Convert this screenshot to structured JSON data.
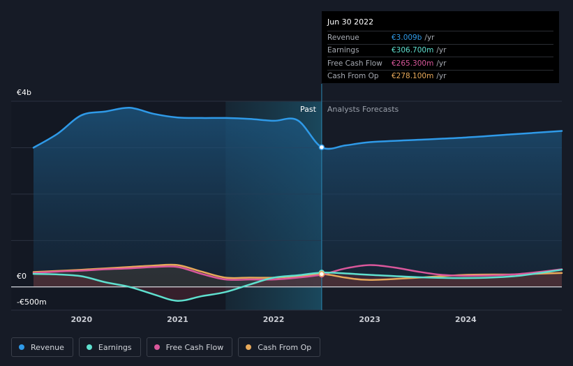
{
  "tooltip": {
    "date": "Jun 30 2022",
    "rows": [
      {
        "label": "Revenue",
        "value": "€3.009b",
        "unit": "/yr",
        "color": "#2f9ae8"
      },
      {
        "label": "Earnings",
        "value": "€306.700m",
        "unit": "/yr",
        "color": "#5fe0cf"
      },
      {
        "label": "Free Cash Flow",
        "value": "€265.300m",
        "unit": "/yr",
        "color": "#d9579b"
      },
      {
        "label": "Cash From Op",
        "value": "€278.100m",
        "unit": "/yr",
        "color": "#e8a95a"
      }
    ]
  },
  "legend": [
    {
      "label": "Revenue",
      "color": "#2f9ae8"
    },
    {
      "label": "Earnings",
      "color": "#5fe0cf"
    },
    {
      "label": "Free Cash Flow",
      "color": "#d9579b"
    },
    {
      "label": "Cash From Op",
      "color": "#e8a95a"
    }
  ],
  "chart_data": {
    "type": "line",
    "y_tick_labels": [
      "€4b",
      "€0",
      "-€500m"
    ],
    "ylim": [
      -500,
      4000
    ],
    "x_ticks": [
      2020,
      2021,
      2022,
      2023,
      2024
    ],
    "xlim": [
      2019.5,
      2025.0
    ],
    "past_label": "Past",
    "forecast_label": "Analysts Forecasts",
    "past_end": 2022.5,
    "forecast_shade_start": 2021.5,
    "grid": true,
    "legend_position": "bottom",
    "series": [
      {
        "name": "Revenue",
        "color": "#2f9ae8",
        "x": [
          2019.5,
          2019.75,
          2020.0,
          2020.25,
          2020.5,
          2020.75,
          2021.0,
          2021.25,
          2021.5,
          2021.75,
          2022.0,
          2022.25,
          2022.5,
          2022.75,
          2023.0,
          2023.5,
          2024.0,
          2024.5,
          2025.0
        ],
        "y": [
          3000,
          3300,
          3700,
          3780,
          3860,
          3730,
          3650,
          3640,
          3640,
          3620,
          3580,
          3590,
          3009,
          3050,
          3120,
          3170,
          3220,
          3290,
          3360
        ]
      },
      {
        "name": "Earnings",
        "color": "#5fe0cf",
        "x": [
          2019.5,
          2019.75,
          2020.0,
          2020.25,
          2020.5,
          2020.75,
          2021.0,
          2021.25,
          2021.5,
          2021.75,
          2022.0,
          2022.25,
          2022.5,
          2022.75,
          2023.0,
          2023.5,
          2024.0,
          2024.5,
          2025.0
        ],
        "y": [
          280,
          270,
          230,
          100,
          0,
          -160,
          -300,
          -200,
          -110,
          50,
          200,
          250,
          307,
          290,
          260,
          210,
          190,
          230,
          370
        ]
      },
      {
        "name": "Free Cash Flow",
        "color": "#d9579b",
        "x": [
          2019.5,
          2019.75,
          2020.0,
          2020.25,
          2020.5,
          2020.75,
          2021.0,
          2021.25,
          2021.5,
          2021.75,
          2022.0,
          2022.25,
          2022.5,
          2022.75,
          2023.0,
          2023.25,
          2023.5,
          2023.75,
          2024.0,
          2024.5,
          2025.0
        ],
        "y": [
          300,
          330,
          350,
          380,
          400,
          430,
          430,
          280,
          160,
          160,
          160,
          200,
          265,
          400,
          470,
          420,
          330,
          260,
          240,
          270,
          380
        ]
      },
      {
        "name": "Cash From Op",
        "color": "#e8a95a",
        "x": [
          2019.5,
          2019.75,
          2020.0,
          2020.25,
          2020.5,
          2020.75,
          2021.0,
          2021.25,
          2021.5,
          2021.75,
          2022.0,
          2022.25,
          2022.5,
          2022.75,
          2023.0,
          2023.5,
          2024.0,
          2024.5,
          2025.0
        ],
        "y": [
          320,
          345,
          370,
          400,
          430,
          460,
          470,
          330,
          200,
          200,
          200,
          230,
          278,
          200,
          150,
          200,
          260,
          270,
          300
        ]
      }
    ]
  }
}
